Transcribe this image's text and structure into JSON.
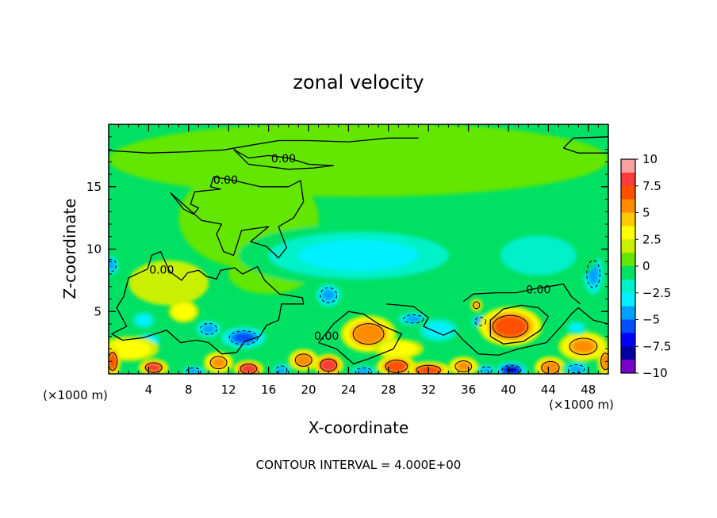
{
  "chart_data": {
    "type": "heatmap",
    "title": "zonal velocity",
    "xlabel": "X-coordinate",
    "ylabel": "Z-coordinate",
    "x_unit": "(×1000 m)",
    "footer": "CONTOUR INTERVAL = 4.000E+00",
    "xlim": [
      0,
      50
    ],
    "ylim": [
      0,
      20
    ],
    "xticks": [
      4,
      8,
      12,
      16,
      20,
      24,
      28,
      32,
      36,
      40,
      44,
      48
    ],
    "yticks": [
      5,
      10,
      15
    ],
    "colorbar": {
      "range": [
        -10,
        10
      ],
      "ticks": [
        "10",
        "7.5",
        "5",
        "2.5",
        "0",
        "−2.5",
        "−5",
        "−7.5",
        "−10"
      ],
      "levels": [
        {
          "from": 8.75,
          "to": 10,
          "color": "#f9a0a0"
        },
        {
          "from": 7.5,
          "to": 8.75,
          "color": "#ff3a3a"
        },
        {
          "from": 6.25,
          "to": 7.5,
          "color": "#ff5000"
        },
        {
          "from": 5,
          "to": 6.25,
          "color": "#ff8c00"
        },
        {
          "from": 3.75,
          "to": 5,
          "color": "#ffc800"
        },
        {
          "from": 2.5,
          "to": 3.75,
          "color": "#ffff00"
        },
        {
          "from": 1.25,
          "to": 2.5,
          "color": "#c8f000"
        },
        {
          "from": 0,
          "to": 1.25,
          "color": "#64e600"
        },
        {
          "from": -1.25,
          "to": 0,
          "color": "#00e164"
        },
        {
          "from": -2.5,
          "to": -1.25,
          "color": "#00f0c8"
        },
        {
          "from": -3.75,
          "to": -2.5,
          "color": "#00f0ff"
        },
        {
          "from": -5,
          "to": -3.75,
          "color": "#00a0ff"
        },
        {
          "from": -6.25,
          "to": -5,
          "color": "#0050ff"
        },
        {
          "from": -7.5,
          "to": -6.25,
          "color": "#0000ff"
        },
        {
          "from": -8.75,
          "to": -7.5,
          "color": "#0000a0"
        },
        {
          "from": -10,
          "to": -8.75,
          "color": "#7800c8"
        }
      ]
    },
    "contour_labels": [
      {
        "text": "0.00",
        "x": 17.5,
        "y": 17.2
      },
      {
        "text": "0.00",
        "x": 11.7,
        "y": 15.5
      },
      {
        "text": "0.00",
        "x": 5.3,
        "y": 8.3
      },
      {
        "text": "0.00",
        "x": 21.8,
        "y": 3.0
      },
      {
        "text": "0.00",
        "x": 43.0,
        "y": 6.7
      }
    ],
    "blobs": [
      {
        "x": 25,
        "y": 17.2,
        "rx": 25,
        "ry": 3,
        "v": 0.6
      },
      {
        "x": 21,
        "y": 18.6,
        "rx": 8,
        "ry": 1.3,
        "v": 0.4
      },
      {
        "x": 14,
        "y": 12.5,
        "rx": 7,
        "ry": 4,
        "v": 0.8
      },
      {
        "x": 6,
        "y": 7.3,
        "rx": 4,
        "ry": 1.8,
        "v": 1.3
      },
      {
        "x": 7.5,
        "y": 5.0,
        "rx": 1.5,
        "ry": 0.9,
        "v": 3.6
      },
      {
        "x": 16,
        "y": 8.0,
        "rx": 4,
        "ry": 1.6,
        "v": 1.0
      },
      {
        "x": 25,
        "y": 9.5,
        "rx": 12,
        "ry": 2.5,
        "v": -3.0
      },
      {
        "x": 22,
        "y": 6.3,
        "rx": 1.5,
        "ry": 1.1,
        "v": -4.6
      },
      {
        "x": 13.5,
        "y": 2.9,
        "rx": 2.6,
        "ry": 1.0,
        "v": -6.2
      },
      {
        "x": 10,
        "y": 3.6,
        "rx": 1.5,
        "ry": 0.8,
        "v": -4.2
      },
      {
        "x": 4,
        "y": 2.7,
        "rx": 1.5,
        "ry": 0.7,
        "v": -3.5
      },
      {
        "x": 26,
        "y": 3.2,
        "rx": 2.8,
        "ry": 1.5,
        "v": 5.8
      },
      {
        "x": 29,
        "y": 2.0,
        "rx": 2.5,
        "ry": 0.8,
        "v": 3.6
      },
      {
        "x": 30.5,
        "y": 4.4,
        "rx": 1.8,
        "ry": 0.6,
        "v": -4.2
      },
      {
        "x": 33,
        "y": 3.5,
        "rx": 2.5,
        "ry": 1.2,
        "v": -2.6
      },
      {
        "x": 37.2,
        "y": 4.2,
        "rx": 1.0,
        "ry": 0.6,
        "v": -5.2
      },
      {
        "x": 36.8,
        "y": 5.5,
        "rx": 0.6,
        "ry": 0.5,
        "v": 5.0
      },
      {
        "x": 40.2,
        "y": 3.8,
        "rx": 3.2,
        "ry": 1.6,
        "v": 7.0
      },
      {
        "x": 48.5,
        "y": 8.0,
        "rx": 1.2,
        "ry": 2.0,
        "v": -4.5
      },
      {
        "x": 0.3,
        "y": 8.7,
        "rx": 0.8,
        "ry": 0.9,
        "v": -4.0
      },
      {
        "x": 43,
        "y": 9.5,
        "rx": 6,
        "ry": 2.5,
        "v": -2.0
      },
      {
        "x": 47.5,
        "y": 2.2,
        "rx": 2.5,
        "ry": 1.2,
        "v": 5.0
      },
      {
        "x": 2,
        "y": 2.0,
        "rx": 3.0,
        "ry": 1.0,
        "v": 3.2
      },
      {
        "x": 4.5,
        "y": 0.5,
        "rx": 1.5,
        "ry": 0.7,
        "v": 7.5
      },
      {
        "x": 0.4,
        "y": 1.0,
        "rx": 0.8,
        "ry": 1.3,
        "v": 6.5
      },
      {
        "x": 8.5,
        "y": 0.2,
        "rx": 1.3,
        "ry": 0.5,
        "v": -4.5
      },
      {
        "x": 11,
        "y": 0.9,
        "rx": 1.5,
        "ry": 0.9,
        "v": 5.0
      },
      {
        "x": 14,
        "y": 0.4,
        "rx": 1.5,
        "ry": 0.7,
        "v": 8.0
      },
      {
        "x": 17.3,
        "y": 0.3,
        "rx": 1.0,
        "ry": 0.6,
        "v": -4.0
      },
      {
        "x": 19.5,
        "y": 1.1,
        "rx": 1.5,
        "ry": 0.9,
        "v": 5.5
      },
      {
        "x": 22,
        "y": 0.7,
        "rx": 1.5,
        "ry": 0.9,
        "v": 8.0
      },
      {
        "x": 25.5,
        "y": 0.2,
        "rx": 1.5,
        "ry": 0.5,
        "v": -5.0
      },
      {
        "x": 28.8,
        "y": 0.6,
        "rx": 2.0,
        "ry": 0.9,
        "v": 6.5
      },
      {
        "x": 32,
        "y": 0.3,
        "rx": 2.2,
        "ry": 0.7,
        "v": 7.2
      },
      {
        "x": 35.5,
        "y": 0.6,
        "rx": 1.5,
        "ry": 0.8,
        "v": 5.0
      },
      {
        "x": 37.8,
        "y": 0.3,
        "rx": 1.0,
        "ry": 0.5,
        "v": -4.5
      },
      {
        "x": 40.3,
        "y": 0.3,
        "rx": 1.7,
        "ry": 0.7,
        "v": -8.0
      },
      {
        "x": 44.2,
        "y": 0.5,
        "rx": 1.6,
        "ry": 0.9,
        "v": 6.0
      },
      {
        "x": 46.8,
        "y": 0.4,
        "rx": 1.5,
        "ry": 0.6,
        "v": -4.0
      },
      {
        "x": 49.7,
        "y": 1.0,
        "rx": 0.8,
        "ry": 1.2,
        "v": 6.2
      },
      {
        "x": 46.8,
        "y": 3.7,
        "rx": 1.2,
        "ry": 0.6,
        "v": -3.2
      },
      {
        "x": 3.5,
        "y": 4.3,
        "rx": 1.4,
        "ry": 0.8,
        "v": -3.0
      }
    ],
    "zero_contours": [
      [
        [
          12.5,
          18.0
        ],
        [
          14.0,
          17.3
        ],
        [
          16.0,
          17.5
        ],
        [
          18.0,
          17.3
        ],
        [
          20.0,
          16.8
        ],
        [
          22.5,
          16.7
        ],
        [
          20.5,
          16.5
        ],
        [
          18.0,
          16.4
        ],
        [
          14.0,
          16.8
        ],
        [
          12.5,
          18.0
        ]
      ],
      [
        [
          0,
          17.9
        ],
        [
          4,
          17.7
        ],
        [
          8,
          17.8
        ],
        [
          11.5,
          17.95
        ],
        [
          14,
          18.3
        ],
        [
          17,
          18.7
        ],
        [
          20,
          18.7
        ],
        [
          24,
          18.6
        ],
        [
          28,
          18.9
        ],
        [
          31,
          18.9
        ]
      ],
      [
        [
          45.5,
          18.1
        ],
        [
          47,
          17.7
        ],
        [
          50,
          17.7
        ]
      ],
      [
        [
          45.5,
          18.1
        ],
        [
          46.5,
          18.9
        ],
        [
          50,
          19.0
        ]
      ],
      [
        [
          10.5,
          15.8
        ],
        [
          10.2,
          15.0
        ],
        [
          11.2,
          14.8
        ],
        [
          8.6,
          14.6
        ],
        [
          8.2,
          13.6
        ],
        [
          9,
          13.3
        ],
        [
          8.5,
          12.8
        ],
        [
          7.5,
          13.2
        ],
        [
          6.2,
          14.5
        ],
        [
          9.3,
          12.3
        ],
        [
          11.3,
          12.0
        ],
        [
          10.8,
          11.2
        ],
        [
          11.5,
          9.8
        ],
        [
          12.5,
          9.5
        ],
        [
          13.3,
          11.5
        ],
        [
          16.0,
          11.8
        ],
        [
          14.2,
          10.6
        ],
        [
          15.8,
          10.2
        ],
        [
          17.0,
          9.3
        ],
        [
          17.8,
          10.1
        ],
        [
          17.0,
          11.8
        ],
        [
          18.5,
          12.5
        ],
        [
          19.5,
          13.8
        ],
        [
          19.2,
          15.5
        ],
        [
          18.0,
          15.0
        ],
        [
          15.2,
          15.0
        ],
        [
          12.5,
          15.5
        ],
        [
          10.5,
          15.8
        ]
      ],
      [
        [
          4.3,
          9.5
        ],
        [
          3.9,
          8.4
        ],
        [
          2.0,
          7.7
        ],
        [
          1.5,
          6.2
        ],
        [
          0.8,
          5.3
        ],
        [
          1.8,
          3.8
        ],
        [
          0.3,
          3.2
        ],
        [
          1.4,
          2.7
        ],
        [
          3.5,
          2.9
        ],
        [
          5.8,
          3.5
        ],
        [
          7.2,
          2.5
        ],
        [
          8.8,
          2.7
        ],
        [
          10.0,
          2.5
        ],
        [
          11.3,
          1.6
        ],
        [
          12.8,
          1.7
        ],
        [
          13.6,
          2.6
        ],
        [
          15.1,
          3.0
        ],
        [
          15.8,
          3.9
        ],
        [
          17.0,
          4.3
        ],
        [
          17.3,
          5.6
        ],
        [
          19.5,
          5.6
        ],
        [
          19.4,
          6.1
        ],
        [
          17.1,
          6.4
        ],
        [
          15.6,
          7.5
        ],
        [
          14.9,
          8.6
        ],
        [
          13.4,
          8.0
        ],
        [
          12.6,
          8.5
        ],
        [
          11.2,
          8.3
        ],
        [
          10.8,
          7.6
        ],
        [
          9.8,
          7.8
        ],
        [
          9.0,
          8.3
        ],
        [
          7.9,
          8.1
        ],
        [
          7.3,
          7.5
        ],
        [
          6.1,
          8.2
        ],
        [
          5.2,
          9.8
        ],
        [
          4.3,
          9.5
        ]
      ],
      [
        [
          27.8,
          5.6
        ],
        [
          30.5,
          5.4
        ],
        [
          32.0,
          4.5
        ],
        [
          31.5,
          3.8
        ],
        [
          33.5,
          3.1
        ],
        [
          34.6,
          3.5
        ],
        [
          35.5,
          2.7
        ],
        [
          37.0,
          1.6
        ],
        [
          39.0,
          1.5
        ],
        [
          41.0,
          2.0
        ],
        [
          43.8,
          2.5
        ],
        [
          45.5,
          4.0
        ],
        [
          46.3,
          4.8
        ],
        [
          47.0,
          5.3
        ],
        [
          48.5,
          4.3
        ],
        [
          50.0,
          4.0
        ]
      ],
      [
        [
          21.0,
          2.5
        ],
        [
          22.5,
          4.0
        ],
        [
          24.0,
          5.0
        ],
        [
          25.5,
          4.8
        ],
        [
          27.0,
          4.0
        ],
        [
          29.3,
          3.2
        ],
        [
          28.5,
          2.0
        ],
        [
          26.0,
          1.2
        ],
        [
          24.5,
          0.8
        ],
        [
          22.8,
          2.0
        ],
        [
          21.0,
          2.5
        ]
      ],
      [
        [
          35.5,
          5.8
        ],
        [
          36.5,
          6.4
        ],
        [
          38.8,
          6.5
        ],
        [
          40.8,
          6.5
        ],
        [
          42.5,
          6.8
        ],
        [
          44.0,
          7.0
        ],
        [
          45.5,
          7.2
        ],
        [
          46.3,
          6.2
        ],
        [
          47.2,
          5.6
        ]
      ],
      [
        [
          38.2,
          3.0
        ],
        [
          39.5,
          2.4
        ],
        [
          41.5,
          2.6
        ],
        [
          43.2,
          3.5
        ],
        [
          44.0,
          4.6
        ],
        [
          43.0,
          5.3
        ],
        [
          41.3,
          5.5
        ],
        [
          39.5,
          5.2
        ],
        [
          38.2,
          4.3
        ],
        [
          38.2,
          3.0
        ]
      ]
    ]
  }
}
